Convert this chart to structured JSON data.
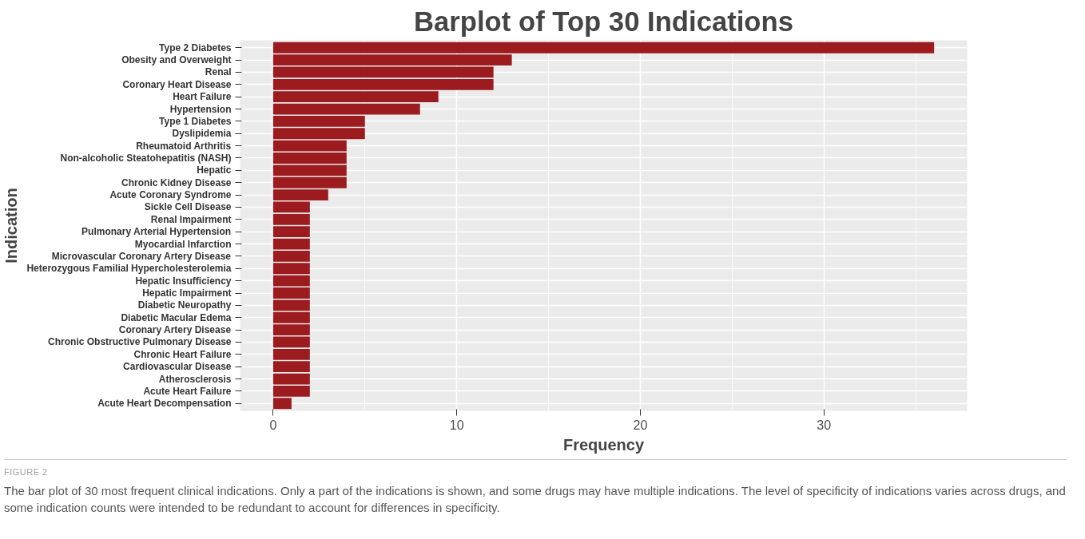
{
  "chart_data": {
    "type": "bar",
    "orientation": "horizontal",
    "title": "Barplot of Top 30 Indications",
    "xlabel": "Frequency",
    "ylabel": "Indication",
    "categories": [
      "Type 2 Diabetes",
      "Obesity and Overweight",
      "Renal",
      "Coronary Heart Disease",
      "Heart Failure",
      "Hypertension",
      "Type 1 Diabetes",
      "Dyslipidemia",
      "Rheumatoid Arthritis",
      "Non-alcoholic Steatohepatitis (NASH)",
      "Hepatic",
      "Chronic Kidney Disease",
      "Acute Coronary Syndrome",
      "Sickle Cell Disease",
      "Renal Impairment",
      "Pulmonary Arterial Hypertension",
      "Myocardial Infarction",
      "Microvascular Coronary Artery Disease",
      "Heterozygous Familial Hypercholesterolemia",
      "Hepatic Insufficiency",
      "Hepatic Impairment",
      "Diabetic Neuropathy",
      "Diabetic Macular Edema",
      "Coronary Artery Disease",
      "Chronic Obstructive Pulmonary Disease",
      "Chronic Heart Failure",
      "Cardiovascular Disease",
      "Atherosclerosis",
      "Acute Heart Failure",
      "Acute Heart Decompensation"
    ],
    "values": [
      36,
      13,
      12,
      12,
      9,
      8,
      5,
      5,
      4,
      4,
      4,
      4,
      3,
      2,
      2,
      2,
      2,
      2,
      2,
      2,
      2,
      2,
      2,
      2,
      2,
      2,
      2,
      2,
      2,
      1
    ],
    "color": "#9b1b1f",
    "xlim": [
      -1.8,
      37.8
    ],
    "xticks": [
      0,
      10,
      20,
      30
    ],
    "grid": true,
    "annotations": [
      "FIGURE 2",
      "The bar plot of 30 most frequent clinical indications. Only a part of the indications is shown, and some drugs may have multiple indications. The level of specificity of indications varies across drugs, and some indication counts were intended to be redundant to account for differences in specificity."
    ]
  }
}
